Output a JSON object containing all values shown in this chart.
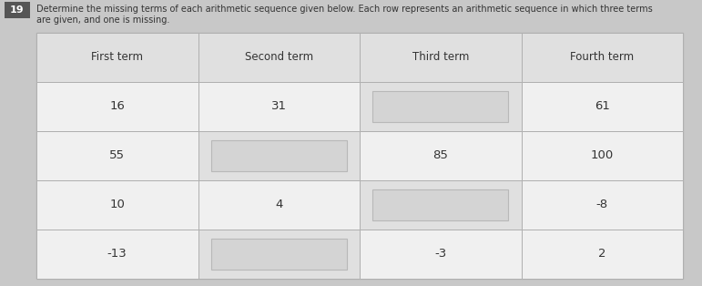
{
  "question_number": "19",
  "instruction_line1": "Determine the missing terms of each arithmetic sequence given below. Each row represents an arithmetic sequence in which three terms",
  "instruction_line2": "are given, and one is missing.",
  "headers": [
    "First term",
    "Second term",
    "Third term",
    "Fourth term"
  ],
  "rows": [
    [
      "16",
      "31",
      null,
      "61"
    ],
    [
      "55",
      null,
      "85",
      "100"
    ],
    [
      "10",
      "4",
      null,
      "-8"
    ],
    [
      "-13",
      null,
      "-3",
      "2"
    ]
  ],
  "page_bg": "#c8c8c8",
  "table_bg": "#e8e8e8",
  "cell_bg": "#f0f0f0",
  "header_cell_bg": "#e0e0e0",
  "missing_outer_bg": "#e0e0e0",
  "missing_inner_bg": "#d4d4d4",
  "border_color": "#b0b0b0",
  "inner_border_color": "#b8b8b8",
  "text_color": "#333333",
  "header_text_color": "#333333",
  "question_bg": "#555555",
  "question_text_color": "#ffffff",
  "figsize": [
    7.71,
    3.14
  ],
  "dpi": 100
}
